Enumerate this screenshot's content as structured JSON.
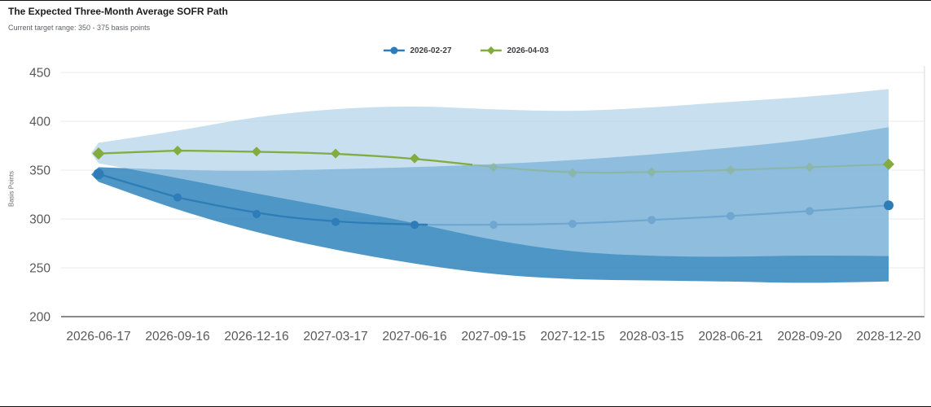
{
  "header": {
    "title": "The Expected Three-Month Average SOFR Path",
    "subtitle": "Current target range: 350 - 375 basis points"
  },
  "legend": {
    "items": [
      {
        "label": "2026-02-27",
        "color": "#2e7cb8",
        "marker": "circle"
      },
      {
        "label": "2026-04-03",
        "color": "#83ab3f",
        "marker": "diamond"
      }
    ]
  },
  "chart_data": {
    "type": "line",
    "title": "The Expected Three-Month Average SOFR Path",
    "xlabel": "",
    "ylabel": "Basis Points",
    "categories": [
      "2026-06-17",
      "2026-09-16",
      "2026-12-16",
      "2027-03-17",
      "2027-06-16",
      "2027-09-15",
      "2027-12-15",
      "2028-03-15",
      "2028-06-21",
      "2028-09-20",
      "2028-12-20"
    ],
    "ylim": [
      200,
      450
    ],
    "yticks": [
      200,
      250,
      300,
      350,
      400,
      450
    ],
    "grid": true,
    "legend_position": "top",
    "series": [
      {
        "name": "2026-02-27",
        "color": "#2e7cb8",
        "marker": "circle",
        "values": [
          346,
          322,
          305,
          297,
          294,
          294,
          295,
          299,
          303,
          308,
          314
        ],
        "band_upper": [
          353,
          350,
          349,
          351,
          353,
          356,
          360,
          366,
          373,
          381,
          394
        ],
        "band_lower": [
          338,
          309,
          286,
          268,
          254,
          243,
          238,
          237,
          236,
          234,
          236
        ],
        "band_fill": "rgba(47,132,187,0.85)"
      },
      {
        "name": "2026-04-03",
        "color": "#83ab3f",
        "marker": "diamond",
        "values": [
          367,
          370,
          369,
          367,
          362,
          353,
          347,
          348,
          350,
          353,
          356
        ],
        "band_upper": [
          378,
          390,
          405,
          413,
          416,
          412,
          410,
          414,
          420,
          425,
          433
        ],
        "band_lower": [
          357,
          342,
          326,
          311,
          296,
          278,
          266,
          262,
          261,
          263,
          262
        ],
        "band_fill": "rgba(174,208,233,0.68)"
      }
    ]
  },
  "colors": {
    "grid_line": "#e8e8e8",
    "axis_line": "#444444",
    "plot_right_border": "#d8d8d8",
    "tick_text": "#595959"
  }
}
